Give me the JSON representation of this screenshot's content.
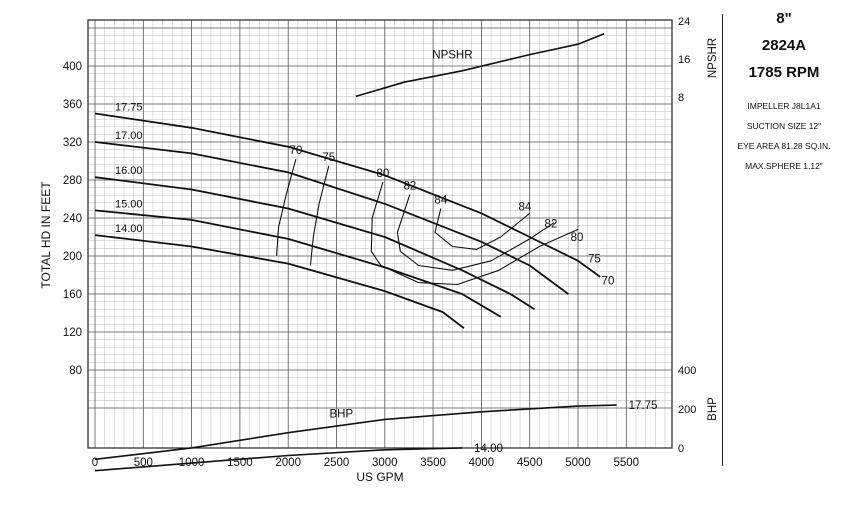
{
  "chart_data": {
    "type": "line",
    "xlabel": "US GPM",
    "ylabel": "TOTAL HD IN FEET",
    "xlim": [
      0,
      6000
    ],
    "ylim": [
      40,
      440
    ],
    "x_ticks": [
      "0",
      "500",
      "1000",
      "1500",
      "2000",
      "2500",
      "3000",
      "3500",
      "4000",
      "4500",
      "5000",
      "5500"
    ],
    "y_ticks": [
      "80",
      "120",
      "160",
      "200",
      "240",
      "280",
      "320",
      "360",
      "400"
    ],
    "grid": true,
    "npshr_axis": {
      "label": "NPSHR",
      "ticks": [
        "8",
        "16",
        "24"
      ]
    },
    "bhp_axis": {
      "label": "BHP",
      "ticks": [
        "0",
        "200",
        "400"
      ]
    },
    "head_curves": [
      {
        "name": "17.75",
        "points": [
          [
            0,
            350
          ],
          [
            1000,
            335
          ],
          [
            2000,
            315
          ],
          [
            3000,
            285
          ],
          [
            4000,
            245
          ],
          [
            4500,
            220
          ],
          [
            5000,
            195
          ],
          [
            5230,
            178
          ]
        ]
      },
      {
        "name": "17.00",
        "points": [
          [
            0,
            320
          ],
          [
            1000,
            308
          ],
          [
            2000,
            288
          ],
          [
            3000,
            255
          ],
          [
            4000,
            215
          ],
          [
            4500,
            190
          ],
          [
            4900,
            160
          ]
        ]
      },
      {
        "name": "16.00",
        "points": [
          [
            0,
            283
          ],
          [
            1000,
            270
          ],
          [
            2000,
            250
          ],
          [
            3000,
            220
          ],
          [
            3800,
            185
          ],
          [
            4300,
            160
          ],
          [
            4550,
            144
          ]
        ]
      },
      {
        "name": "15.00",
        "points": [
          [
            0,
            248
          ],
          [
            1000,
            238
          ],
          [
            2000,
            218
          ],
          [
            3000,
            188
          ],
          [
            3800,
            160
          ],
          [
            4200,
            136
          ]
        ]
      },
      {
        "name": "14.00",
        "points": [
          [
            0,
            222
          ],
          [
            1000,
            210
          ],
          [
            2000,
            192
          ],
          [
            3000,
            163
          ],
          [
            3600,
            141
          ],
          [
            3820,
            124
          ]
        ]
      }
    ],
    "efficiency_curves": [
      {
        "name": "70",
        "points": [
          [
            2080,
            302
          ],
          [
            1980,
            265
          ],
          [
            1900,
            230
          ],
          [
            1880,
            200
          ]
        ]
      },
      {
        "name": "75",
        "points": [
          [
            2420,
            295
          ],
          [
            2320,
            255
          ],
          [
            2260,
            220
          ],
          [
            2230,
            190
          ]
        ]
      },
      {
        "name": "80",
        "points": [
          [
            2980,
            278
          ],
          [
            2870,
            240
          ],
          [
            2860,
            205
          ],
          [
            2960,
            190
          ],
          [
            3350,
            172
          ],
          [
            3750,
            170
          ],
          [
            4180,
            185
          ],
          [
            4600,
            210
          ],
          [
            5000,
            228
          ]
        ]
      },
      {
        "name": "82",
        "points": [
          [
            3260,
            265
          ],
          [
            3130,
            225
          ],
          [
            3160,
            205
          ],
          [
            3350,
            190
          ],
          [
            3700,
            185
          ],
          [
            4100,
            195
          ],
          [
            4500,
            218
          ],
          [
            4750,
            235
          ]
        ]
      },
      {
        "name": "84",
        "points": [
          [
            3580,
            250
          ],
          [
            3520,
            225
          ],
          [
            3700,
            210
          ],
          [
            3950,
            207
          ],
          [
            4200,
            220
          ],
          [
            4500,
            245
          ]
        ]
      }
    ],
    "efficiency_right_labels": [
      {
        "name": "84",
        "x": 4450,
        "y": 248
      },
      {
        "name": "82",
        "x": 4720,
        "y": 230
      },
      {
        "name": "80",
        "x": 4990,
        "y": 216
      },
      {
        "name": "75",
        "x": 5170,
        "y": 193
      },
      {
        "name": "70",
        "x": 5310,
        "y": 170
      }
    ],
    "npshr_curve": {
      "name": "NPSHR",
      "points": [
        [
          2700,
          368
        ],
        [
          3200,
          383
        ],
        [
          3800,
          395
        ],
        [
          4500,
          412
        ],
        [
          5000,
          423
        ],
        [
          5270,
          434
        ]
      ]
    },
    "bhp_curves": [
      {
        "name": "17.75",
        "points": [
          [
            0,
            -14
          ],
          [
            1000,
            -2
          ],
          [
            2000,
            14
          ],
          [
            3000,
            28
          ],
          [
            4000,
            36
          ],
          [
            5000,
            42
          ],
          [
            5400,
            43
          ]
        ]
      },
      {
        "name": "14.00",
        "points": [
          [
            0,
            -26
          ],
          [
            1000,
            -18
          ],
          [
            2000,
            -10
          ],
          [
            3000,
            -4
          ],
          [
            3800,
            -2
          ]
        ]
      }
    ],
    "bhp_label": "BHP"
  },
  "info": {
    "size": "8\"",
    "model": "2824A",
    "rpm": "1785 RPM",
    "impeller": "IMPELLER J8L1A1",
    "suction": "SUCTION SIZE 12\"",
    "eye_area": "EYE AREA 81.28 SQ.IN.",
    "max_sphere": "MAX.SPHERE 1.12\""
  }
}
